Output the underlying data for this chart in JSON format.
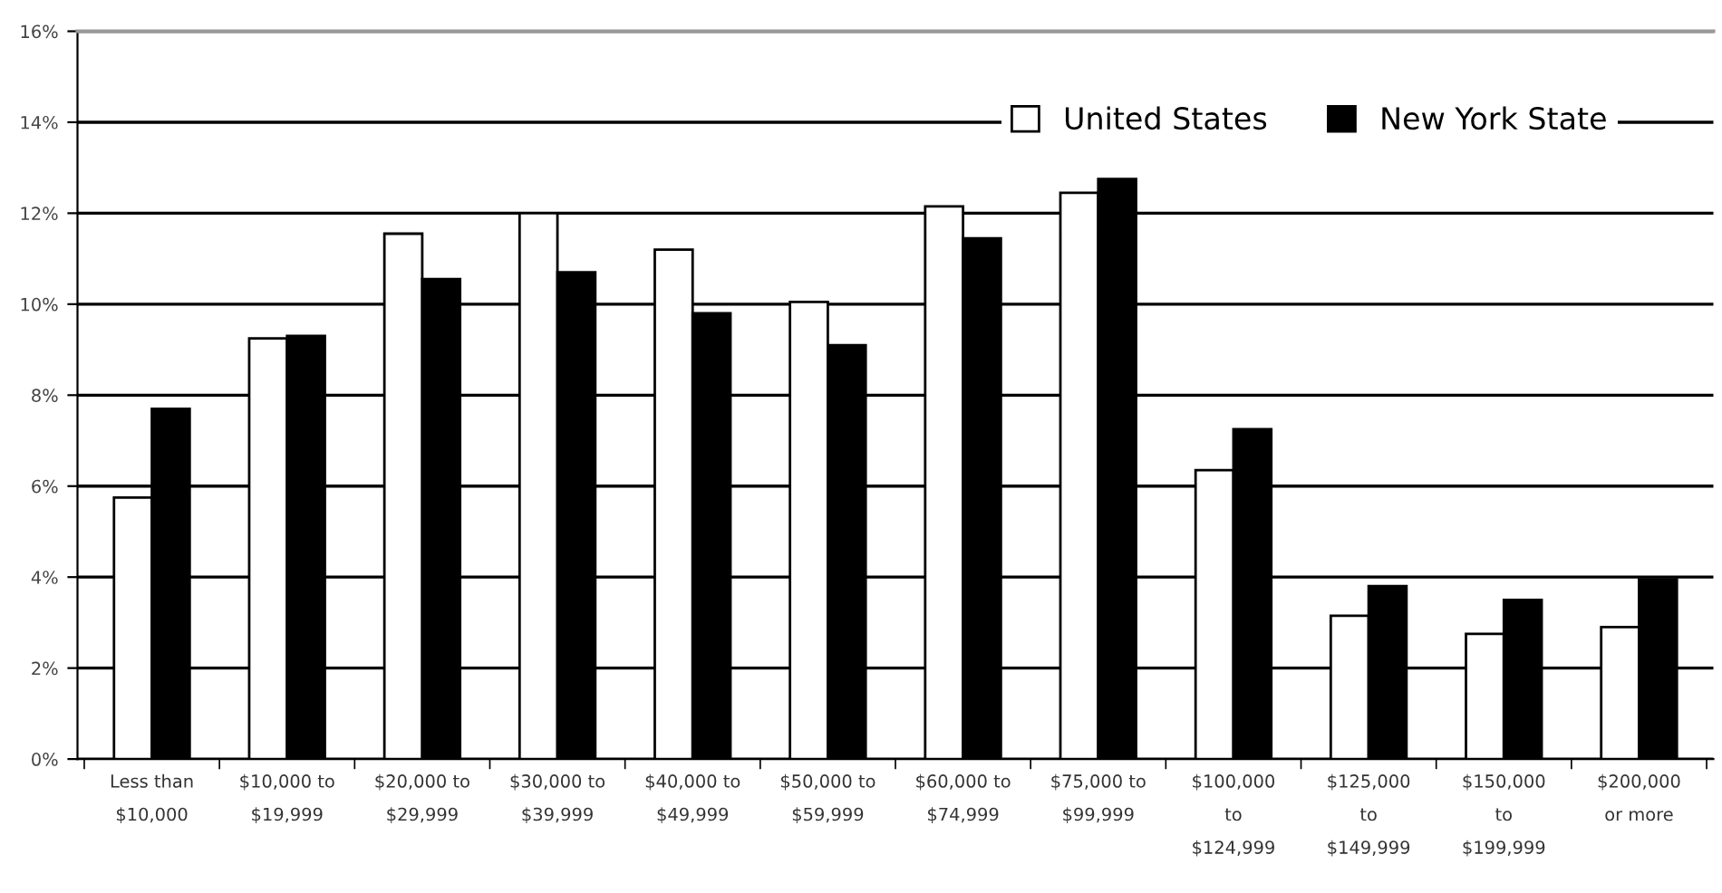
{
  "chart_data": {
    "type": "bar",
    "categories": [
      "Less than\n$10,000",
      "$10,000 to\n$19,999",
      "$20,000 to\n$29,999",
      "$30,000 to\n$39,999",
      "$40,000 to\n$49,999",
      "$50,000 to\n$59,999",
      "$60,000 to\n$74,999",
      "$75,000 to\n$99,999",
      "$100,000\nto\n$124,999",
      "$125,000\nto\n$149,999",
      "$150,000\nto\n$199,999",
      "$200,000\nor more"
    ],
    "series": [
      {
        "name": "United States",
        "color": "#ffffff",
        "values": [
          5.75,
          9.25,
          11.55,
          12.0,
          11.2,
          10.05,
          12.15,
          12.45,
          6.35,
          3.15,
          2.75,
          2.9
        ]
      },
      {
        "name": "New York State",
        "color": "#000000",
        "values": [
          7.7,
          9.3,
          10.55,
          10.7,
          9.8,
          9.1,
          11.45,
          12.75,
          7.25,
          3.8,
          3.5,
          3.95
        ]
      }
    ],
    "ylim": [
      0,
      16
    ],
    "yticks": [
      {
        "value": 0,
        "label": "0%"
      },
      {
        "value": 2,
        "label": "2%"
      },
      {
        "value": 4,
        "label": "4%"
      },
      {
        "value": 6,
        "label": "6%"
      },
      {
        "value": 8,
        "label": "8%"
      },
      {
        "value": 10,
        "label": "10%"
      },
      {
        "value": 12,
        "label": "12%"
      },
      {
        "value": 14,
        "label": "14%"
      },
      {
        "value": 16,
        "label": "16%"
      }
    ],
    "grid": "y",
    "legend": "top right"
  }
}
